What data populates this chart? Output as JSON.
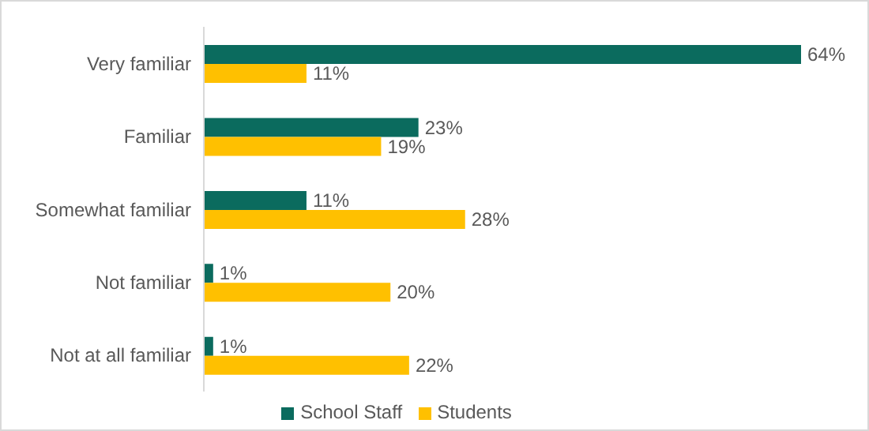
{
  "chart_data": {
    "type": "bar",
    "orientation": "horizontal",
    "categories": [
      "Very familiar",
      "Familiar",
      "Somewhat familiar",
      "Not familiar",
      "Not at all familiar"
    ],
    "series": [
      {
        "name": "School Staff",
        "color": "#0b6b5e",
        "values": [
          64,
          23,
          11,
          1,
          1
        ],
        "value_labels": [
          "64%",
          "23%",
          "11%",
          "1%",
          "1%"
        ]
      },
      {
        "name": "Students",
        "color": "#ffc000",
        "values": [
          11,
          19,
          28,
          20,
          22
        ],
        "value_labels": [
          "11%",
          "19%",
          "28%",
          "20%",
          "22%"
        ]
      }
    ],
    "legend": "bottom",
    "grid": false
  }
}
